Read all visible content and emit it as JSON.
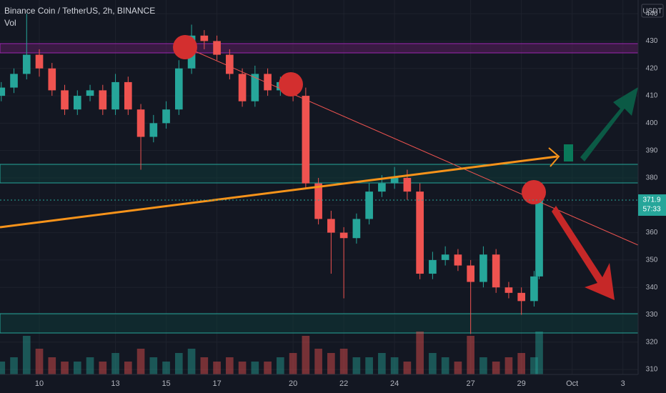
{
  "chart_data": {
    "type": "candlestick",
    "title": "Binance Coin / TetherUS, 2h, BINANCE",
    "volume_label": "Vol",
    "currency": "USDT",
    "last_price": 371.9,
    "countdown": "57:33",
    "x": [
      8.5,
      9,
      9.5,
      10,
      10.5,
      11,
      11.5,
      12,
      12.5,
      13,
      13.5,
      14,
      14.5,
      15,
      15.5,
      16,
      16.5,
      17,
      17.5,
      18,
      18.5,
      19,
      19.5,
      20,
      20.5,
      21,
      21.5,
      22,
      22.5,
      23,
      23.5,
      24,
      24.5,
      25,
      25.5,
      26,
      26.5,
      27,
      27.5,
      28,
      28.5,
      29,
      29.5,
      29.7
    ],
    "open": [
      410,
      413,
      418,
      425,
      420,
      412,
      405,
      410,
      412,
      405,
      415,
      405,
      395,
      400,
      405,
      420,
      432,
      430,
      425,
      418,
      408,
      418,
      412,
      415,
      410,
      378,
      365,
      360,
      358,
      365,
      375,
      378,
      380,
      375,
      345,
      350,
      352,
      348,
      342,
      352,
      340,
      338,
      335,
      344
    ],
    "high": [
      415,
      420,
      440,
      427,
      422,
      414,
      412,
      414,
      414,
      418,
      417,
      407,
      403,
      408,
      423,
      436,
      434,
      432,
      427,
      420,
      421,
      420,
      417,
      418,
      413,
      380,
      368,
      362,
      367,
      378,
      381,
      384,
      383,
      378,
      353,
      355,
      354,
      350,
      355,
      354,
      342,
      340,
      346,
      374
    ],
    "low": [
      408,
      411,
      416,
      417,
      410,
      403,
      403,
      408,
      403,
      403,
      403,
      383,
      393,
      398,
      403,
      418,
      427,
      423,
      416,
      406,
      406,
      410,
      410,
      408,
      376,
      363,
      345,
      336,
      356,
      363,
      373,
      376,
      372,
      343,
      343,
      348,
      346,
      323,
      340,
      338,
      336,
      330,
      333,
      343
    ],
    "close": [
      413,
      418,
      425,
      420,
      412,
      405,
      410,
      412,
      405,
      415,
      405,
      395,
      400,
      405,
      420,
      432,
      430,
      425,
      418,
      408,
      418,
      412,
      415,
      410,
      378,
      365,
      360,
      358,
      365,
      375,
      378,
      380,
      375,
      345,
      350,
      352,
      348,
      342,
      352,
      340,
      338,
      335,
      344,
      371.9
    ],
    "volume": [
      3,
      4,
      9,
      6,
      4,
      3,
      3,
      4,
      3,
      5,
      3,
      6,
      4,
      3,
      5,
      6,
      4,
      3,
      4,
      3,
      3,
      3,
      4,
      5,
      9,
      6,
      5,
      6,
      4,
      4,
      5,
      4,
      3,
      10,
      5,
      4,
      3,
      9,
      4,
      3,
      4,
      5,
      4,
      10
    ],
    "xlim": [
      8.45,
      33.6
    ],
    "ylim": [
      308.2,
      445
    ],
    "xticks": [
      10,
      13,
      15,
      17,
      20,
      22,
      24,
      27,
      29,
      {
        "value": 31,
        "label": "Oct"
      },
      3
    ],
    "yticks": [
      310,
      320,
      330,
      340,
      350,
      360,
      370,
      380,
      390,
      400,
      410,
      420,
      430,
      440
    ],
    "up_color": "#26a69a",
    "down_color": "#ef5350"
  }
}
